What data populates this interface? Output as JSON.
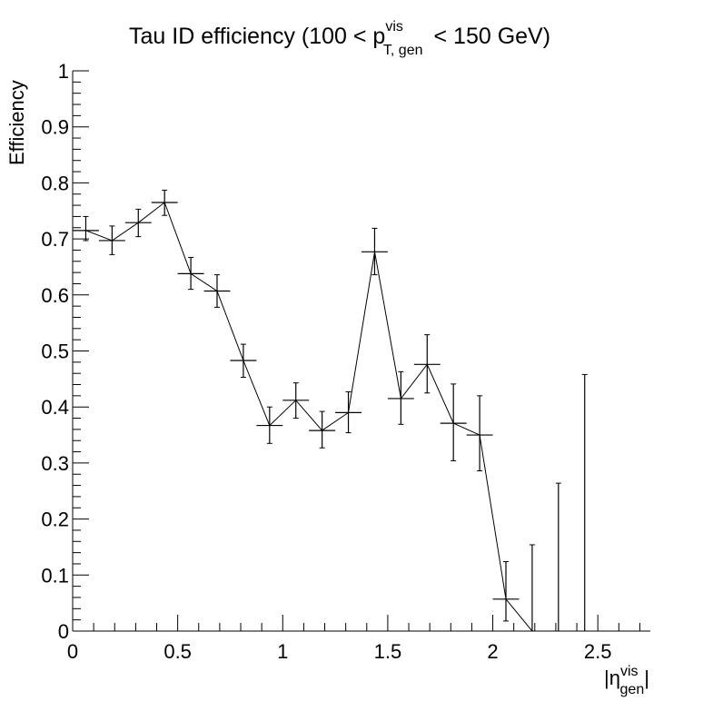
{
  "chart_data": {
    "type": "line",
    "title": {
      "prefix": "Tau ID efficiency (100 < p",
      "superscript": "vis",
      "subscript": "T, gen",
      "suffix": "< 150 GeV)"
    },
    "xlabel": {
      "open": "|η",
      "superscript": "vis",
      "subscript": "gen",
      "close": "|"
    },
    "ylabel": "Efficiency",
    "xlim": [
      0,
      2.75
    ],
    "ylim": [
      0,
      1
    ],
    "x_ticks": [
      {
        "value": 0,
        "label": "0"
      },
      {
        "value": 0.5,
        "label": "0.5"
      },
      {
        "value": 1,
        "label": "1"
      },
      {
        "value": 1.5,
        "label": "1.5"
      },
      {
        "value": 2,
        "label": "2"
      },
      {
        "value": 2.5,
        "label": "2.5"
      }
    ],
    "y_ticks": [
      {
        "value": 0,
        "label": "0"
      },
      {
        "value": 0.1,
        "label": "0.1"
      },
      {
        "value": 0.2,
        "label": "0.2"
      },
      {
        "value": 0.3,
        "label": "0.3"
      },
      {
        "value": 0.4,
        "label": "0.4"
      },
      {
        "value": 0.5,
        "label": "0.5"
      },
      {
        "value": 0.6,
        "label": "0.6"
      },
      {
        "value": 0.7,
        "label": "0.7"
      },
      {
        "value": 0.8,
        "label": "0.8"
      },
      {
        "value": 0.9,
        "label": "0.9"
      },
      {
        "value": 1,
        "label": "1"
      }
    ],
    "grid": false,
    "series": [
      {
        "points": [
          {
            "x": 0.0625,
            "y": 0.715,
            "xerr": 0.0625,
            "ylo": 0.697,
            "yhi": 0.74
          },
          {
            "x": 0.1875,
            "y": 0.697,
            "xerr": 0.0625,
            "ylo": 0.672,
            "yhi": 0.723
          },
          {
            "x": 0.3125,
            "y": 0.729,
            "xerr": 0.0625,
            "ylo": 0.704,
            "yhi": 0.753
          },
          {
            "x": 0.4375,
            "y": 0.765,
            "xerr": 0.0625,
            "ylo": 0.742,
            "yhi": 0.787
          },
          {
            "x": 0.5625,
            "y": 0.638,
            "xerr": 0.0625,
            "ylo": 0.61,
            "yhi": 0.667
          },
          {
            "x": 0.6875,
            "y": 0.607,
            "xerr": 0.0625,
            "ylo": 0.578,
            "yhi": 0.636
          },
          {
            "x": 0.8125,
            "y": 0.483,
            "xerr": 0.0625,
            "ylo": 0.453,
            "yhi": 0.512
          },
          {
            "x": 0.9375,
            "y": 0.367,
            "xerr": 0.0625,
            "ylo": 0.335,
            "yhi": 0.4
          },
          {
            "x": 1.0625,
            "y": 0.412,
            "xerr": 0.0625,
            "ylo": 0.38,
            "yhi": 0.443
          },
          {
            "x": 1.1875,
            "y": 0.358,
            "xerr": 0.0625,
            "ylo": 0.327,
            "yhi": 0.392
          },
          {
            "x": 1.3125,
            "y": 0.39,
            "xerr": 0.0625,
            "ylo": 0.354,
            "yhi": 0.427
          },
          {
            "x": 1.4375,
            "y": 0.677,
            "xerr": 0.0625,
            "ylo": 0.636,
            "yhi": 0.719
          },
          {
            "x": 1.5625,
            "y": 0.415,
            "xerr": 0.0625,
            "ylo": 0.369,
            "yhi": 0.463
          },
          {
            "x": 1.6875,
            "y": 0.476,
            "xerr": 0.0625,
            "ylo": 0.425,
            "yhi": 0.529
          },
          {
            "x": 1.8125,
            "y": 0.371,
            "xerr": 0.0625,
            "ylo": 0.304,
            "yhi": 0.441
          },
          {
            "x": 1.9375,
            "y": 0.35,
            "xerr": 0.0625,
            "ylo": 0.286,
            "yhi": 0.42
          },
          {
            "x": 2.0625,
            "y": 0.057,
            "xerr": 0.0625,
            "ylo": 0.018,
            "yhi": 0.124
          },
          {
            "x": 2.1875,
            "y": 0.0,
            "xerr": 0.0,
            "ylo": 0.0,
            "yhi": 0.154
          },
          {
            "x": 2.3125,
            "y": 0.0,
            "xerr": 0.0,
            "ylo": 0.0,
            "yhi": 0.264
          },
          {
            "x": 2.4375,
            "y": 0.0,
            "xerr": 0.0,
            "ylo": 0.0,
            "yhi": 0.458
          }
        ]
      }
    ]
  }
}
